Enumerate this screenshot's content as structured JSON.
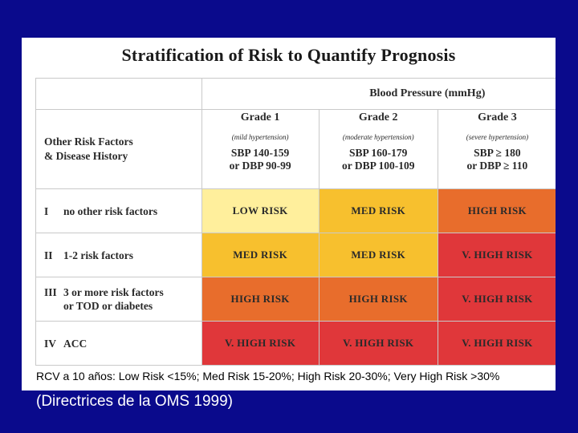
{
  "title": "Stratification of Risk to Quantify Prognosis",
  "header": {
    "blood_pressure": "Blood Pressure (mmHg)",
    "factors": [
      "Other Risk Factors",
      "& Disease History"
    ]
  },
  "grades": [
    {
      "name": "Grade 1",
      "sub": "(mild hypertension)",
      "sbp": "SBP 140-159",
      "dbp": "or DBP 90-99"
    },
    {
      "name": "Grade 2",
      "sub": "(moderate hypertension)",
      "sbp": "SBP 160-179",
      "dbp": "or DBP 100-109"
    },
    {
      "name": "Grade 3",
      "sub": "(severe hypertension)",
      "sbp": "SBP ≥ 180",
      "dbp": "or DBP ≥ 110"
    }
  ],
  "rows": [
    {
      "num": "I",
      "label": "no other risk factors",
      "label2": "",
      "cells": [
        "LOW RISK",
        "MED RISK",
        "HIGH RISK"
      ]
    },
    {
      "num": "II",
      "label": "1-2 risk factors",
      "label2": "",
      "cells": [
        "MED RISK",
        "MED RISK",
        "V. HIGH RISK"
      ]
    },
    {
      "num": "III",
      "label": "3 or more risk factors",
      "label2": "or TOD or diabetes",
      "cells": [
        "HIGH RISK",
        "HIGH RISK",
        "V. HIGH RISK"
      ]
    },
    {
      "num": "IV",
      "label": "ACC",
      "label2": "",
      "cells": [
        "V. HIGH RISK",
        "V. HIGH RISK",
        "V. HIGH RISK"
      ]
    }
  ],
  "colors": {
    "low": "#ffef9c",
    "med": "#f7c02e",
    "high": "#e86d2c",
    "vhigh": "#e0373a",
    "background": "#0a0a8c"
  },
  "footnote": "RCV a 10 años: Low Risk <15%; Med Risk 15-20%; High Risk 20-30%; Very High Risk >30%",
  "source": "(Directrices de  la OMS 1999)"
}
